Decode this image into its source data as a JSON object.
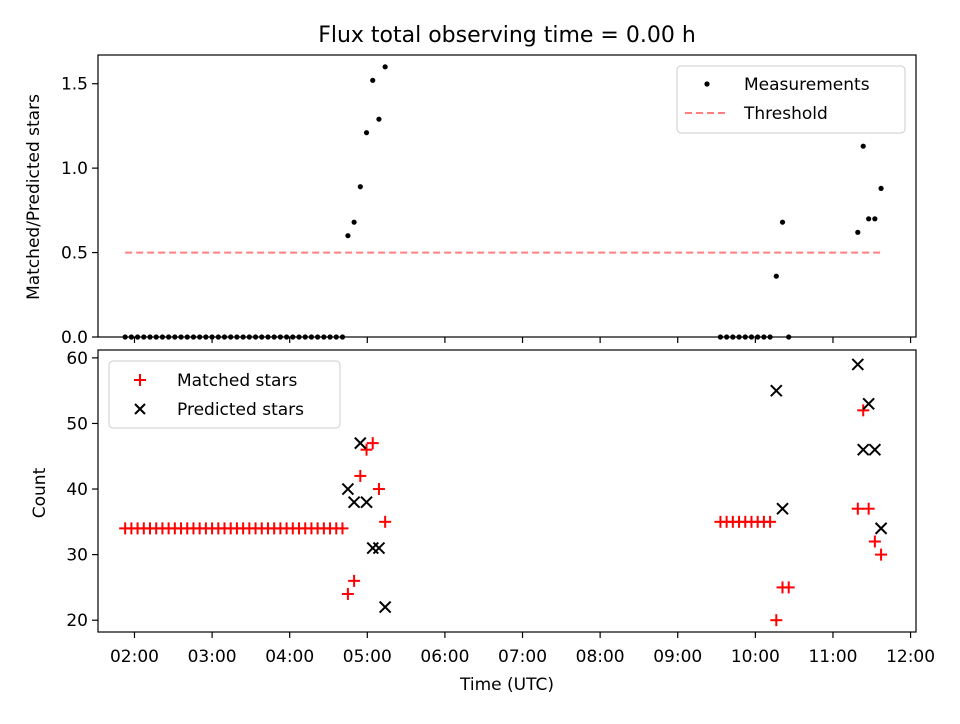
{
  "chart_data": [
    {
      "type": "scatter",
      "title": "Flux total observing time = 0.00 h",
      "xlabel": "",
      "ylabel": "Matched/Predicted stars",
      "ylim": [
        0,
        1.67
      ],
      "yticks": [
        "0.0",
        "0.5",
        "1.0",
        "1.5"
      ],
      "ytick_values": [
        0,
        0.5,
        1.0,
        1.5
      ],
      "xlim_hours": [
        1.53,
        12.07
      ],
      "grid": false,
      "legend_position": "top-right",
      "series": [
        {
          "name": "Measurements",
          "marker": "dot",
          "color": "#000000",
          "points": [
            [
              1.88,
              0
            ],
            [
              1.96,
              0
            ],
            [
              2.04,
              0
            ],
            [
              2.12,
              0
            ],
            [
              2.2,
              0
            ],
            [
              2.28,
              0
            ],
            [
              2.36,
              0
            ],
            [
              2.44,
              0
            ],
            [
              2.52,
              0
            ],
            [
              2.6,
              0
            ],
            [
              2.68,
              0
            ],
            [
              2.76,
              0
            ],
            [
              2.84,
              0
            ],
            [
              2.92,
              0
            ],
            [
              3.0,
              0
            ],
            [
              3.08,
              0
            ],
            [
              3.16,
              0
            ],
            [
              3.24,
              0
            ],
            [
              3.32,
              0
            ],
            [
              3.4,
              0
            ],
            [
              3.48,
              0
            ],
            [
              3.56,
              0
            ],
            [
              3.64,
              0
            ],
            [
              3.72,
              0
            ],
            [
              3.8,
              0
            ],
            [
              3.88,
              0
            ],
            [
              3.96,
              0
            ],
            [
              4.04,
              0
            ],
            [
              4.12,
              0
            ],
            [
              4.2,
              0
            ],
            [
              4.28,
              0
            ],
            [
              4.36,
              0
            ],
            [
              4.44,
              0
            ],
            [
              4.52,
              0
            ],
            [
              4.6,
              0
            ],
            [
              4.68,
              0
            ],
            [
              4.75,
              0.6
            ],
            [
              4.83,
              0.68
            ],
            [
              4.91,
              0.89
            ],
            [
              4.99,
              1.21
            ],
            [
              5.07,
              1.52
            ],
            [
              5.15,
              1.29
            ],
            [
              5.23,
              1.6
            ],
            [
              9.55,
              0
            ],
            [
              9.63,
              0
            ],
            [
              9.71,
              0
            ],
            [
              9.79,
              0
            ],
            [
              9.87,
              0
            ],
            [
              9.95,
              0
            ],
            [
              10.03,
              0
            ],
            [
              10.11,
              0
            ],
            [
              10.19,
              0
            ],
            [
              10.27,
              0.36
            ],
            [
              10.35,
              0.68
            ],
            [
              10.43,
              0
            ],
            [
              11.32,
              0.62
            ],
            [
              11.39,
              1.13
            ],
            [
              11.46,
              0.7
            ],
            [
              11.54,
              0.7
            ],
            [
              11.62,
              0.88
            ]
          ]
        },
        {
          "name": "Threshold",
          "marker": "dashed-line",
          "color": "#ff7f7f",
          "points": [
            [
              1.88,
              0.5
            ],
            [
              11.62,
              0.5
            ]
          ]
        }
      ]
    },
    {
      "type": "scatter",
      "title": "",
      "xlabel": "Time (UTC)",
      "ylabel": "Count",
      "ylim": [
        18.2,
        61.2
      ],
      "yticks": [
        "20",
        "30",
        "40",
        "50",
        "60"
      ],
      "ytick_values": [
        20,
        30,
        40,
        50,
        60
      ],
      "xlim_hours": [
        1.53,
        12.07
      ],
      "xticks": [
        "02:00",
        "03:00",
        "04:00",
        "05:00",
        "06:00",
        "07:00",
        "08:00",
        "09:00",
        "10:00",
        "11:00",
        "12:00"
      ],
      "xtick_values": [
        2,
        3,
        4,
        5,
        6,
        7,
        8,
        9,
        10,
        11,
        12
      ],
      "grid": false,
      "legend_position": "top-left",
      "series": [
        {
          "name": "Matched stars",
          "marker": "plus",
          "color": "#ff0000",
          "points": [
            [
              1.88,
              34
            ],
            [
              1.96,
              34
            ],
            [
              2.04,
              34
            ],
            [
              2.12,
              34
            ],
            [
              2.2,
              34
            ],
            [
              2.28,
              34
            ],
            [
              2.36,
              34
            ],
            [
              2.44,
              34
            ],
            [
              2.52,
              34
            ],
            [
              2.6,
              34
            ],
            [
              2.68,
              34
            ],
            [
              2.76,
              34
            ],
            [
              2.84,
              34
            ],
            [
              2.92,
              34
            ],
            [
              3.0,
              34
            ],
            [
              3.08,
              34
            ],
            [
              3.16,
              34
            ],
            [
              3.24,
              34
            ],
            [
              3.32,
              34
            ],
            [
              3.4,
              34
            ],
            [
              3.48,
              34
            ],
            [
              3.56,
              34
            ],
            [
              3.64,
              34
            ],
            [
              3.72,
              34
            ],
            [
              3.8,
              34
            ],
            [
              3.88,
              34
            ],
            [
              3.96,
              34
            ],
            [
              4.04,
              34
            ],
            [
              4.12,
              34
            ],
            [
              4.2,
              34
            ],
            [
              4.28,
              34
            ],
            [
              4.36,
              34
            ],
            [
              4.44,
              34
            ],
            [
              4.52,
              34
            ],
            [
              4.6,
              34
            ],
            [
              4.68,
              34
            ],
            [
              4.75,
              24
            ],
            [
              4.83,
              26
            ],
            [
              4.91,
              42
            ],
            [
              4.99,
              46
            ],
            [
              5.07,
              47
            ],
            [
              5.15,
              40
            ],
            [
              5.23,
              35
            ],
            [
              9.55,
              35
            ],
            [
              9.63,
              35
            ],
            [
              9.71,
              35
            ],
            [
              9.79,
              35
            ],
            [
              9.87,
              35
            ],
            [
              9.95,
              35
            ],
            [
              10.03,
              35
            ],
            [
              10.11,
              35
            ],
            [
              10.19,
              35
            ],
            [
              10.27,
              20
            ],
            [
              10.35,
              25
            ],
            [
              10.43,
              25
            ],
            [
              11.32,
              37
            ],
            [
              11.39,
              52
            ],
            [
              11.46,
              37
            ],
            [
              11.54,
              32
            ],
            [
              11.62,
              30
            ]
          ]
        },
        {
          "name": "Predicted stars",
          "marker": "x",
          "color": "#000000",
          "points": [
            [
              4.75,
              40
            ],
            [
              4.83,
              38
            ],
            [
              4.91,
              47
            ],
            [
              4.99,
              38
            ],
            [
              5.07,
              31
            ],
            [
              5.15,
              31
            ],
            [
              5.23,
              22
            ],
            [
              10.27,
              55
            ],
            [
              10.35,
              37
            ],
            [
              11.32,
              59
            ],
            [
              11.39,
              46
            ],
            [
              11.46,
              53
            ],
            [
              11.54,
              46
            ],
            [
              11.62,
              34
            ]
          ]
        }
      ]
    }
  ]
}
